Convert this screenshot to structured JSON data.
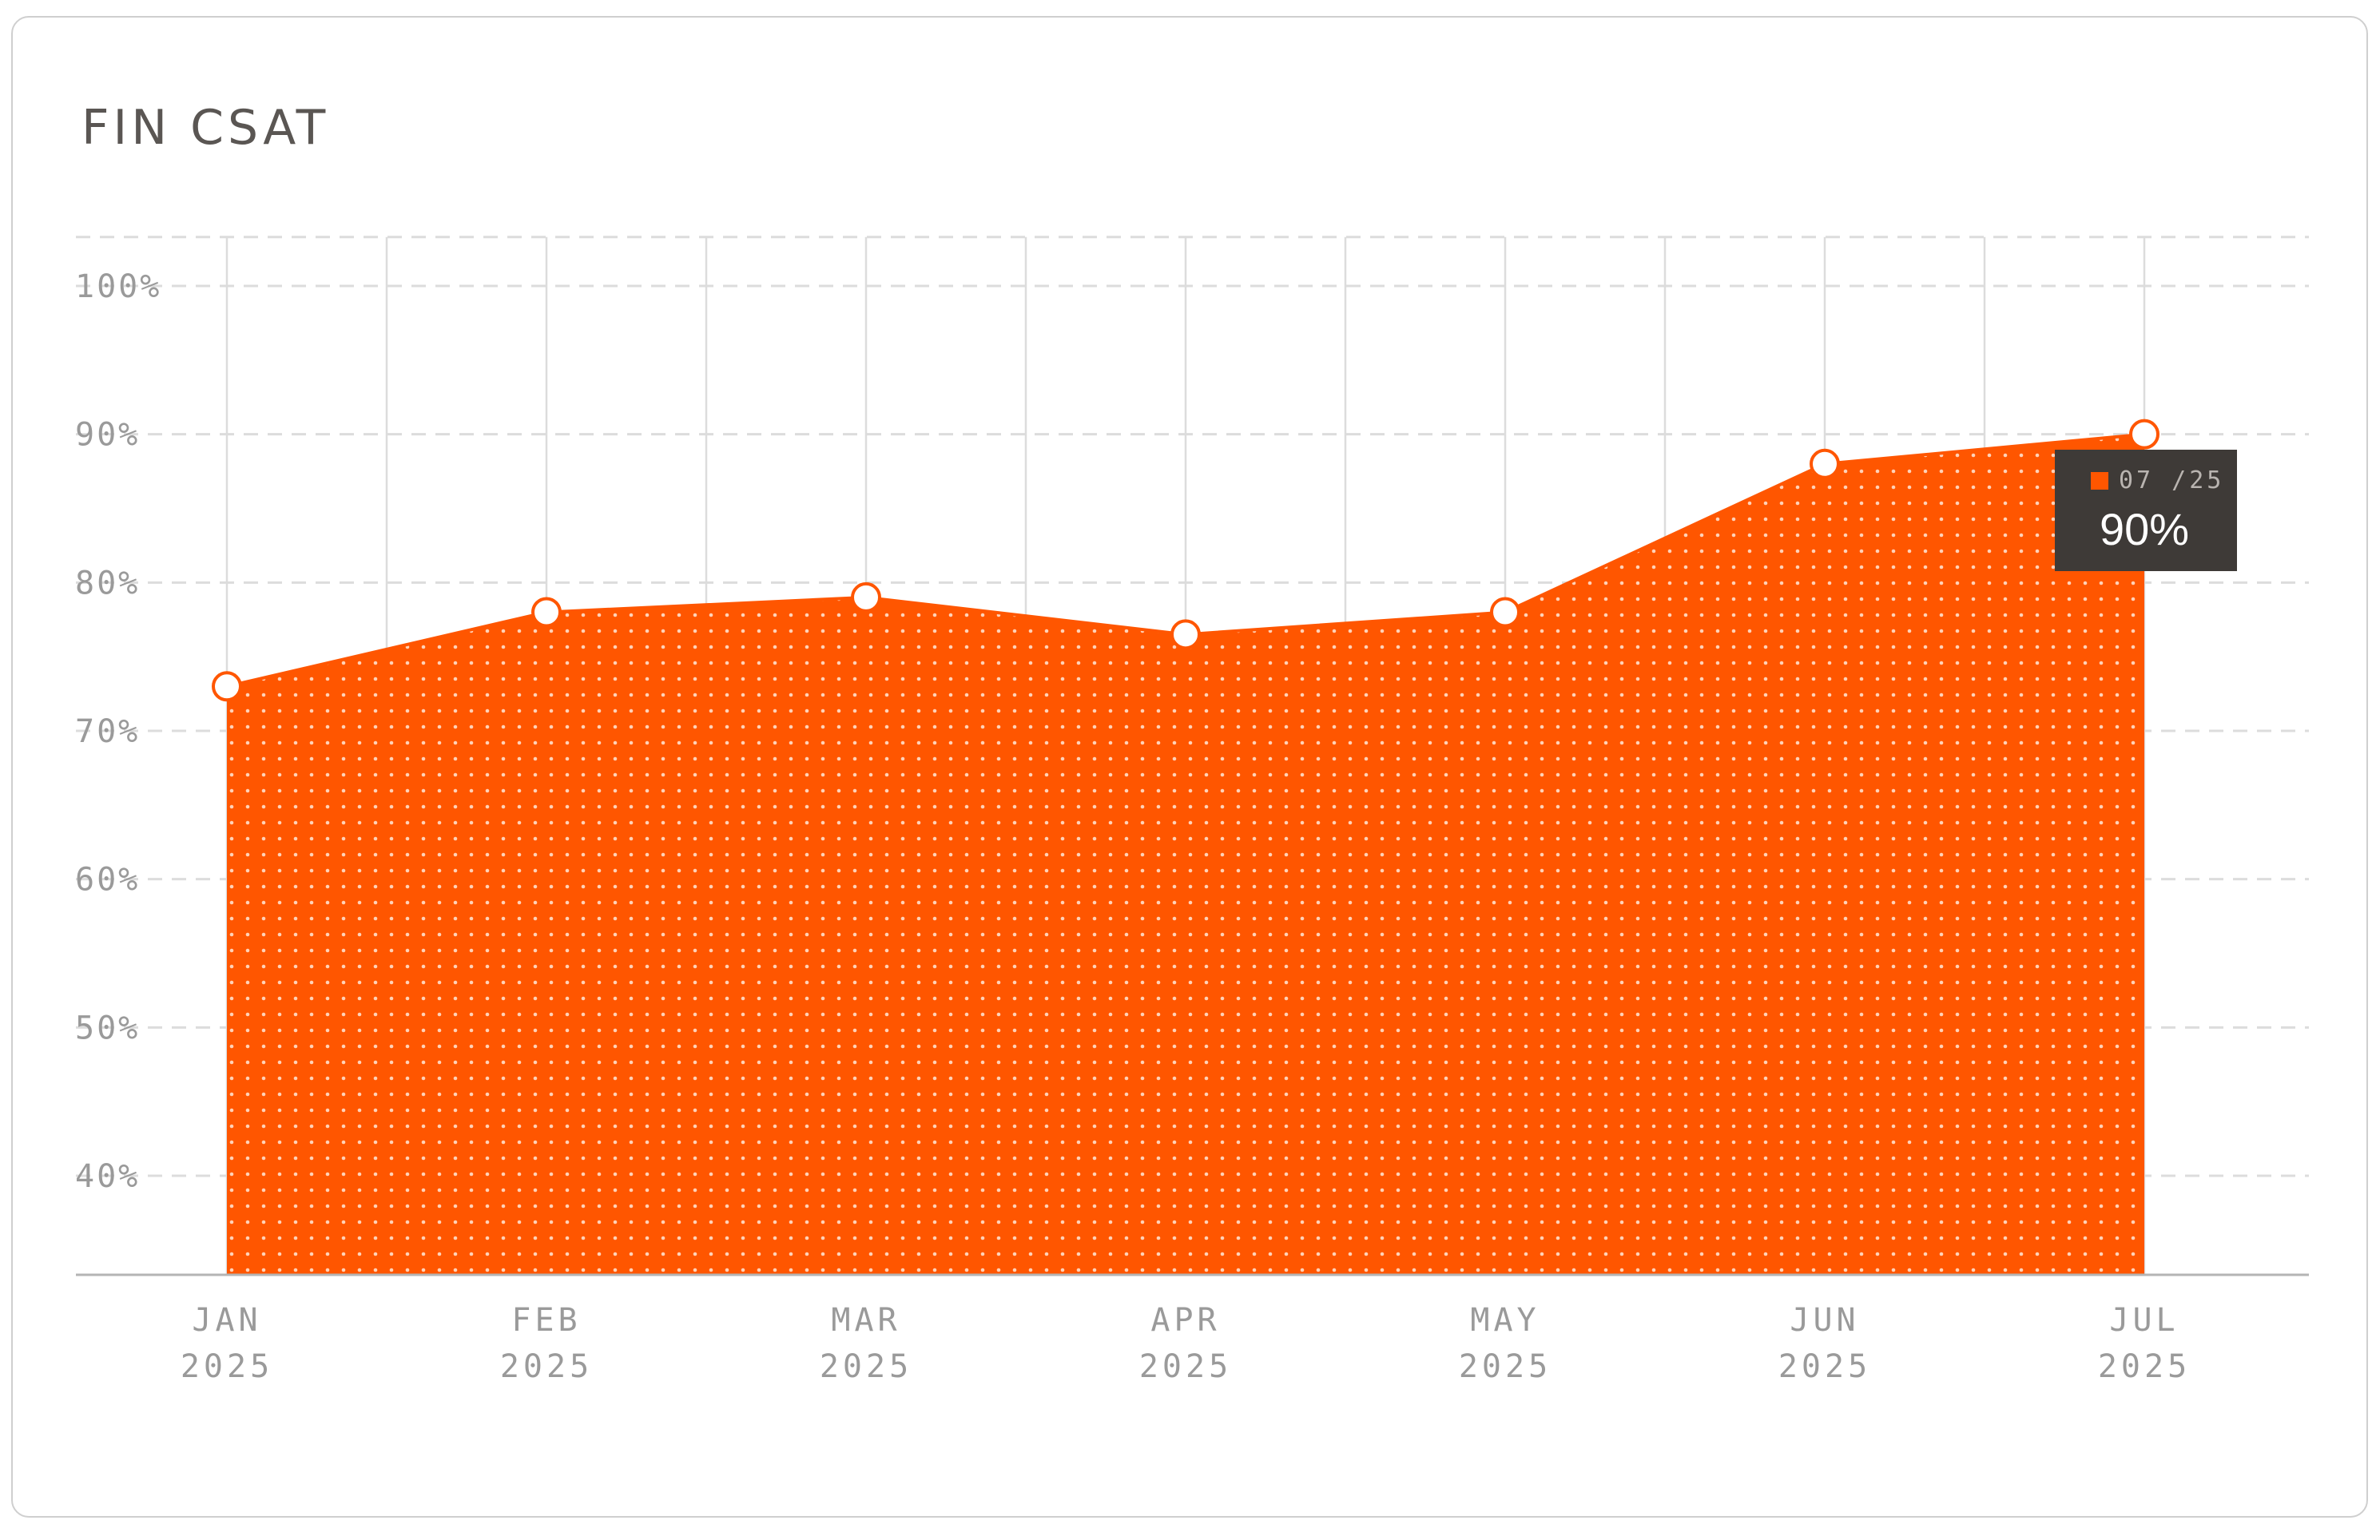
{
  "card": {
    "title": "FIN CSAT"
  },
  "colors": {
    "area_fill": "#ff5600",
    "dot_pattern": "#ffd2b8",
    "grid": "#dcdcdc",
    "axis": "#b4b4b4",
    "tick_text": "#9a9a9a",
    "tooltip_bg": "#3e3a37",
    "marker_stroke": "#ff5600",
    "marker_fill": "#ffffff"
  },
  "tooltip": {
    "date": "07 /25",
    "value": "90%",
    "swatch_icon": "orange-square-icon"
  },
  "chart_data": {
    "type": "area",
    "title": "FIN CSAT",
    "xlabel": "",
    "ylabel": "",
    "categories": [
      "JAN 2025",
      "FEB 2025",
      "MAR 2025",
      "APR 2025",
      "MAY 2025",
      "JUN 2025",
      "JUL 2025"
    ],
    "x_tick_labels": [
      [
        "JAN",
        "2025"
      ],
      [
        "FEB",
        "2025"
      ],
      [
        "MAR",
        "2025"
      ],
      [
        "APR",
        "2025"
      ],
      [
        "MAY",
        "2025"
      ],
      [
        "JUN",
        "2025"
      ],
      [
        "JUL",
        "2025"
      ]
    ],
    "series": [
      {
        "values": [
          73,
          78,
          79,
          76.5,
          78,
          88,
          90
        ]
      }
    ],
    "y_ticks": [
      40,
      50,
      60,
      70,
      80,
      90,
      100
    ],
    "y_tick_labels": [
      "40%",
      "50%",
      "60%",
      "70%",
      "80%",
      "90%",
      "100%"
    ],
    "ylim": [
      30,
      103
    ],
    "grid": true,
    "legend": "none"
  }
}
